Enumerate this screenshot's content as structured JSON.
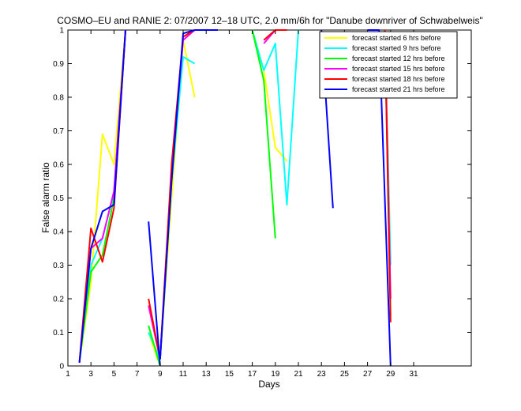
{
  "chart_data": {
    "type": "line",
    "title": "COSMO–EU and RANIE 2: 07/2007 12–18 UTC, 2.0 mm/6h for \"Danube downriver of Schwabelweis\"",
    "xlabel": "Days",
    "ylabel": "False alarm ratio",
    "xlim": [
      1,
      36
    ],
    "ylim": [
      0,
      1
    ],
    "xticks": [
      1,
      3,
      5,
      7,
      9,
      11,
      13,
      15,
      17,
      19,
      21,
      23,
      25,
      27,
      29,
      31
    ],
    "yticks": [
      0,
      0.1,
      0.2,
      0.3,
      0.4,
      0.5,
      0.6,
      0.7,
      0.8,
      0.9,
      1
    ],
    "ytick_labels": [
      "0",
      "0.1",
      "0.2",
      "0.3",
      "0.4",
      "0.5",
      "0.6",
      "0.7",
      "0.8",
      "0.9",
      "1"
    ],
    "grid": false,
    "legend_position": "top-right",
    "series": [
      {
        "name": "forecast started 6 hrs before",
        "color": "#ffff00",
        "segments": [
          [
            [
              2,
              0.01
            ],
            [
              3,
              0.25
            ],
            [
              4,
              0.69
            ],
            [
              5,
              0.6
            ],
            [
              6,
              1.0
            ]
          ],
          [
            [
              8,
              0.1
            ],
            [
              9,
              0.0
            ]
          ],
          [
            [
              9,
              0.02
            ],
            [
              10,
              0.5
            ],
            [
              11,
              0.97
            ],
            [
              12,
              0.8
            ]
          ],
          [
            [
              17,
              1.0
            ],
            [
              18,
              0.88
            ],
            [
              19,
              0.65
            ],
            [
              20,
              0.61
            ]
          ],
          [
            [
              28.5,
              1.0
            ],
            [
              29,
              0.32
            ]
          ]
        ]
      },
      {
        "name": "forecast started 9 hrs before",
        "color": "#00ffff",
        "segments": [
          [
            [
              2,
              0.01
            ],
            [
              3,
              0.3
            ],
            [
              4,
              0.38
            ],
            [
              5,
              0.52
            ],
            [
              6,
              1.0
            ]
          ],
          [
            [
              8,
              0.1
            ],
            [
              9,
              0.02
            ]
          ],
          [
            [
              9,
              0.02
            ],
            [
              10,
              0.55
            ],
            [
              11,
              0.92
            ],
            [
              12,
              0.9
            ]
          ],
          [
            [
              17,
              1.0
            ],
            [
              18,
              0.88
            ],
            [
              19,
              0.96
            ],
            [
              20,
              0.48
            ],
            [
              21,
              1.0
            ]
          ],
          [
            [
              28.5,
              1.0
            ],
            [
              29,
              0.3
            ]
          ]
        ]
      },
      {
        "name": "forecast started 12 hrs before",
        "color": "#00ff00",
        "segments": [
          [
            [
              2,
              0.01
            ],
            [
              3,
              0.28
            ],
            [
              4,
              0.33
            ],
            [
              5,
              0.5
            ],
            [
              6,
              1.0
            ]
          ],
          [
            [
              8,
              0.12
            ],
            [
              9,
              0.0
            ]
          ],
          [
            [
              9,
              0.02
            ],
            [
              10,
              0.55
            ],
            [
              11,
              0.98
            ],
            [
              12,
              1.0
            ]
          ],
          [
            [
              17,
              1.0
            ],
            [
              18,
              0.85
            ],
            [
              19,
              0.38
            ]
          ],
          [
            [
              28.5,
              1.0
            ],
            [
              29,
              0.15
            ]
          ]
        ]
      },
      {
        "name": "forecast started 15 hrs before",
        "color": "#ff00ff",
        "segments": [
          [
            [
              2,
              0.01
            ],
            [
              3,
              0.35
            ],
            [
              4,
              0.38
            ],
            [
              5,
              0.52
            ],
            [
              6,
              1.0
            ]
          ],
          [
            [
              8,
              0.18
            ],
            [
              9,
              0.02
            ]
          ],
          [
            [
              9,
              0.02
            ],
            [
              10,
              0.58
            ],
            [
              11,
              0.97
            ],
            [
              12,
              1.0
            ]
          ],
          [
            [
              18,
              0.96
            ],
            [
              19,
              1.0
            ],
            [
              20,
              1.0
            ]
          ],
          [
            [
              28.5,
              1.0
            ],
            [
              29,
              0.2
            ]
          ]
        ]
      },
      {
        "name": "forecast started 18 hrs before",
        "color": "#ff0000",
        "segments": [
          [
            [
              2,
              0.01
            ],
            [
              3,
              0.41
            ],
            [
              4,
              0.31
            ],
            [
              5,
              0.47
            ],
            [
              6,
              1.0
            ]
          ],
          [
            [
              8,
              0.2
            ],
            [
              9,
              0.02
            ]
          ],
          [
            [
              9,
              0.02
            ],
            [
              10,
              0.6
            ],
            [
              11,
              0.98
            ],
            [
              12,
              1.0
            ],
            [
              14,
              1.0
            ]
          ],
          [
            [
              18,
              0.97
            ],
            [
              19,
              1.0
            ],
            [
              20,
              1.0
            ]
          ],
          [
            [
              28.5,
              1.0
            ],
            [
              29,
              0.13
            ]
          ]
        ]
      },
      {
        "name": "forecast started 21 hrs before",
        "color": "#0000ff",
        "segments": [
          [
            [
              2,
              0.01
            ],
            [
              3,
              0.35
            ],
            [
              4,
              0.46
            ],
            [
              5,
              0.48
            ],
            [
              6,
              1.0
            ]
          ],
          [
            [
              8,
              0.43
            ],
            [
              9,
              0.0
            ]
          ],
          [
            [
              9,
              0.02
            ],
            [
              10,
              0.55
            ],
            [
              11,
              0.99
            ],
            [
              12,
              1.0
            ],
            [
              14,
              1.0
            ]
          ],
          [
            [
              23,
              1.0
            ],
            [
              24,
              0.47
            ]
          ],
          [
            [
              27,
              1.0
            ],
            [
              28,
              1.0
            ],
            [
              29,
              0.0
            ]
          ]
        ]
      }
    ]
  }
}
